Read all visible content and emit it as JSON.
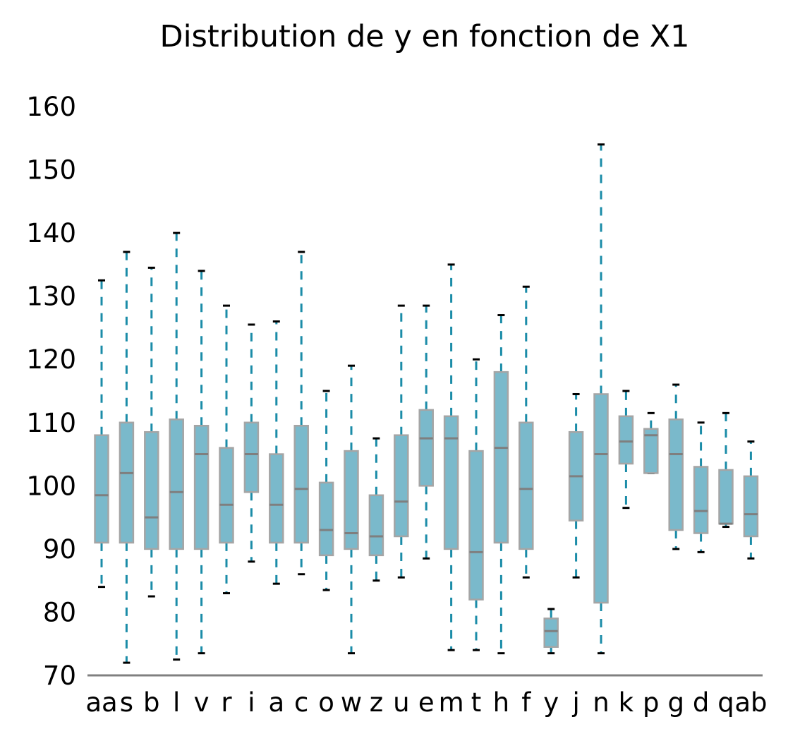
{
  "chart_data": {
    "type": "box",
    "title": "Distribution de y en fonction de X1",
    "xlabel": "",
    "ylabel": "",
    "ylim": [
      70,
      160
    ],
    "yticks": [
      70,
      80,
      90,
      100,
      110,
      120,
      130,
      140,
      150,
      160
    ],
    "grid": false,
    "legend": "none",
    "colors": {
      "box_fill": "#7ab9cb",
      "box_edge": "#a5a5a5",
      "median": "#7f7f7f",
      "whisker": "#1b8ca8",
      "cap": "#000000",
      "axis": "#808080"
    },
    "categories": [
      "aa",
      "s",
      "b",
      "l",
      "v",
      "r",
      "i",
      "a",
      "c",
      "o",
      "w",
      "z",
      "u",
      "e",
      "m",
      "t",
      "h",
      "f",
      "y",
      "j",
      "n",
      "k",
      "p",
      "g",
      "d",
      "q",
      "ab"
    ],
    "boxes": [
      {
        "label": "aa",
        "whislo": 84,
        "q1": 91,
        "med": 98.5,
        "q3": 108,
        "whishi": 132.5
      },
      {
        "label": "s",
        "whislo": 72,
        "q1": 91,
        "med": 102,
        "q3": 110,
        "whishi": 137
      },
      {
        "label": "b",
        "whislo": 82.5,
        "q1": 90,
        "med": 95,
        "q3": 108.5,
        "whishi": 134.5
      },
      {
        "label": "l",
        "whislo": 72.5,
        "q1": 90,
        "med": 99,
        "q3": 110.5,
        "whishi": 140
      },
      {
        "label": "v",
        "whislo": 73.5,
        "q1": 90,
        "med": 105,
        "q3": 109.5,
        "whishi": 134
      },
      {
        "label": "r",
        "whislo": 83,
        "q1": 91,
        "med": 97,
        "q3": 106,
        "whishi": 128.5
      },
      {
        "label": "i",
        "whislo": 88,
        "q1": 99,
        "med": 105,
        "q3": 110,
        "whishi": 125.5
      },
      {
        "label": "a",
        "whislo": 84.5,
        "q1": 91,
        "med": 97,
        "q3": 105,
        "whishi": 126
      },
      {
        "label": "c",
        "whislo": 86,
        "q1": 91,
        "med": 99.5,
        "q3": 109.5,
        "whishi": 137
      },
      {
        "label": "o",
        "whislo": 83.5,
        "q1": 89,
        "med": 93,
        "q3": 100.5,
        "whishi": 115
      },
      {
        "label": "w",
        "whislo": 73.5,
        "q1": 90,
        "med": 92.5,
        "q3": 105.5,
        "whishi": 119
      },
      {
        "label": "z",
        "whislo": 85,
        "q1": 89,
        "med": 92,
        "q3": 98.5,
        "whishi": 107.5
      },
      {
        "label": "u",
        "whislo": 85.5,
        "q1": 92,
        "med": 97.5,
        "q3": 108,
        "whishi": 128.5
      },
      {
        "label": "e",
        "whislo": 88.5,
        "q1": 100,
        "med": 107.5,
        "q3": 112,
        "whishi": 128.5
      },
      {
        "label": "m",
        "whislo": 74,
        "q1": 90,
        "med": 107.5,
        "q3": 111,
        "whishi": 135
      },
      {
        "label": "t",
        "whislo": 74,
        "q1": 82,
        "med": 89.5,
        "q3": 105.5,
        "whishi": 120
      },
      {
        "label": "h",
        "whislo": 73.5,
        "q1": 91,
        "med": 106,
        "q3": 118,
        "whishi": 127
      },
      {
        "label": "f",
        "whislo": 85.5,
        "q1": 90,
        "med": 99.5,
        "q3": 110,
        "whishi": 131.5
      },
      {
        "label": "y",
        "whislo": 73.5,
        "q1": 74.5,
        "med": 77,
        "q3": 79,
        "whishi": 80.5
      },
      {
        "label": "j",
        "whislo": 85.5,
        "q1": 94.5,
        "med": 101.5,
        "q3": 108.5,
        "whishi": 114.5
      },
      {
        "label": "n",
        "whislo": 73.5,
        "q1": 81.5,
        "med": 105,
        "q3": 114.5,
        "whishi": 154
      },
      {
        "label": "k",
        "whislo": 96.5,
        "q1": 103.5,
        "med": 107,
        "q3": 111,
        "whishi": 115
      },
      {
        "label": "p",
        "whislo": 102,
        "q1": 102,
        "med": 108,
        "q3": 109,
        "whishi": 111.5
      },
      {
        "label": "g",
        "whislo": 90,
        "q1": 93,
        "med": 105,
        "q3": 110.5,
        "whishi": 116
      },
      {
        "label": "d",
        "whislo": 89.5,
        "q1": 92.5,
        "med": 96,
        "q3": 103,
        "whishi": 110
      },
      {
        "label": "q",
        "whislo": 93.5,
        "q1": 94,
        "med": 94,
        "q3": 102.5,
        "whishi": 111.5
      },
      {
        "label": "ab",
        "whislo": 88.5,
        "q1": 92,
        "med": 95.5,
        "q3": 101.5,
        "whishi": 107
      }
    ]
  }
}
